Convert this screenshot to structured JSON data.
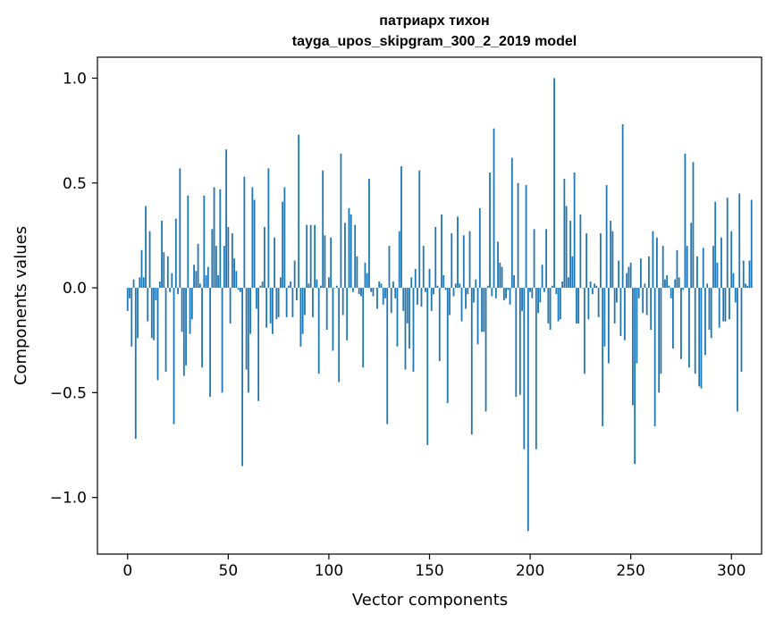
{
  "chart_data": {
    "type": "bar",
    "title": "патриарх тихон",
    "subtitle": "tayga_upos_skipgram_300_2_2019 model",
    "xlabel": "Vector components",
    "ylabel": "Components values",
    "xlim": [
      -15,
      315
    ],
    "ylim": [
      -1.27,
      1.1
    ],
    "xticks": [
      0,
      50,
      100,
      150,
      200,
      250,
      300
    ],
    "yticks": [
      1.0,
      0.5,
      0.0,
      -0.5,
      -1.0
    ],
    "ytick_labels": [
      "1.0",
      "0.5",
      "0.0",
      "−0.5",
      "−1.0"
    ],
    "bar_color": "#1f77b4",
    "grid": false,
    "values": [
      -0.11,
      -0.05,
      -0.28,
      0.04,
      -0.72,
      -0.24,
      0.05,
      0.18,
      0.05,
      0.39,
      -0.16,
      0.27,
      -0.24,
      -0.25,
      -0.06,
      -0.44,
      0.03,
      0.32,
      0.17,
      -0.4,
      0.15,
      -0.02,
      0.07,
      -0.65,
      0.33,
      -0.03,
      0.57,
      -0.21,
      -0.42,
      -0.37,
      0.44,
      -0.22,
      -0.15,
      0.11,
      0.08,
      0.21,
      0.02,
      -0.38,
      0.44,
      0.06,
      0.1,
      -0.52,
      0.28,
      0.48,
      0.2,
      0.06,
      0.47,
      -0.5,
      0.2,
      0.66,
      0.29,
      -0.17,
      0.26,
      0.14,
      0.08,
      -0.01,
      -0.02,
      -0.85,
      0.53,
      -0.39,
      -0.5,
      -0.22,
      0.48,
      0.42,
      -0.1,
      -0.54,
      0.01,
      0.03,
      0.29,
      -0.19,
      0.57,
      -0.17,
      -0.22,
      0.24,
      -0.15,
      -0.14,
      0.05,
      0.41,
      0.48,
      -0.14,
      0.01,
      0.03,
      -0.14,
      0.13,
      -0.06,
      0.73,
      -0.28,
      -0.22,
      -0.13,
      0.3,
      0.02,
      0.3,
      -0.14,
      0.3,
      0.04,
      -0.41,
      0.01,
      0.56,
      0.25,
      -0.2,
      0.05,
      0.24,
      -0.3,
      0.0,
      0.01,
      -0.45,
      0.64,
      -0.13,
      0.31,
      -0.25,
      0.38,
      0.35,
      -0.02,
      0.3,
      0.15,
      -0.03,
      -0.04,
      -0.38,
      0.12,
      0.07,
      0.52,
      -0.02,
      -0.04,
      0.0,
      -0.1,
      0.03,
      0.02,
      -0.08,
      -0.05,
      -0.65,
      0.2,
      -0.12,
      0.03,
      -0.05,
      -0.28,
      0.27,
      0.58,
      -0.11,
      -0.39,
      -0.17,
      -0.29,
      0.05,
      -0.4,
      0.09,
      -0.08,
      0.56,
      -0.09,
      0.2,
      -0.02,
      -0.75,
      0.09,
      -0.11,
      -0.03,
      0.29,
      0.01,
      -0.35,
      0.35,
      0.06,
      -0.01,
      -0.55,
      -0.13,
      0.26,
      -0.04,
      0.02,
      0.34,
      0.02,
      -0.16,
      0.25,
      -0.1,
      -0.03,
      0.27,
      -0.7,
      -0.07,
      0.04,
      -0.27,
      0.38,
      -0.21,
      -0.21,
      -0.59,
      0.01,
      0.55,
      -0.04,
      0.76,
      -0.05,
      0.22,
      0.12,
      0.1,
      -0.06,
      -0.05,
      -0.01,
      -0.08,
      0.62,
      0.06,
      -0.52,
      0.5,
      -0.51,
      -0.11,
      -0.77,
      0.49,
      -1.16,
      -0.02,
      -0.05,
      0.28,
      -0.77,
      -0.12,
      -0.07,
      0.11,
      -0.02,
      0.28,
      -0.17,
      -0.2,
      0.01,
      1.0,
      -0.03,
      -0.16,
      -0.15,
      0.03,
      0.52,
      0.39,
      0.05,
      0.32,
      0.15,
      0.55,
      -0.17,
      -0.17,
      0.35,
      0.0,
      -0.41,
      0.26,
      -0.15,
      0.03,
      -0.03,
      0.02,
      0.01,
      -0.14,
      0.26,
      -0.66,
      -0.28,
      0.49,
      -0.36,
      0.32,
      0.27,
      -0.17,
      -0.07,
      0.13,
      -0.23,
      0.78,
      -0.25,
      0.07,
      0.1,
      0.12,
      -0.56,
      -0.84,
      -0.36,
      -0.05,
      0.14,
      -0.12,
      0.02,
      -0.13,
      0.15,
      -0.2,
      0.27,
      -0.66,
      0.24,
      -0.5,
      -0.41,
      0.2,
      0.04,
      0.06,
      0.01,
      -0.05,
      -0.29,
      0.04,
      0.18,
      0.05,
      -0.34,
      -0.01,
      0.64,
      0.2,
      -0.38,
      0.31,
      0.6,
      -0.41,
      0.15,
      -0.47,
      -0.48,
      0.19,
      -0.32,
      0.02,
      -0.2,
      -0.24,
      0.2,
      0.41,
      0.12,
      -0.19,
      0.24,
      -0.16,
      -0.16,
      0.43,
      -0.15,
      0.27,
      0.07,
      -0.07,
      -0.59,
      0.45,
      -0.4,
      0.13,
      0.02,
      0.01,
      0.13,
      0.42
    ]
  }
}
